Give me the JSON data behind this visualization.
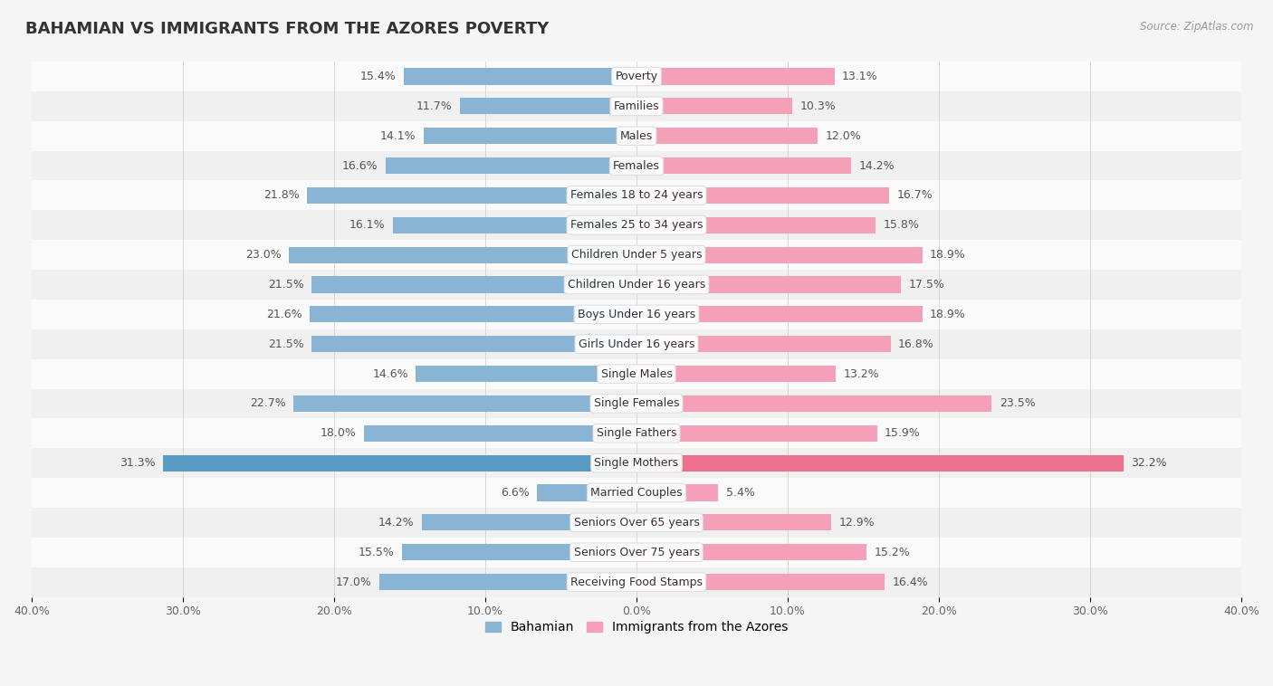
{
  "title": "BAHAMIAN VS IMMIGRANTS FROM THE AZORES POVERTY",
  "source": "Source: ZipAtlas.com",
  "categories": [
    "Poverty",
    "Families",
    "Males",
    "Females",
    "Females 18 to 24 years",
    "Females 25 to 34 years",
    "Children Under 5 years",
    "Children Under 16 years",
    "Boys Under 16 years",
    "Girls Under 16 years",
    "Single Males",
    "Single Females",
    "Single Fathers",
    "Single Mothers",
    "Married Couples",
    "Seniors Over 65 years",
    "Seniors Over 75 years",
    "Receiving Food Stamps"
  ],
  "bahamian": [
    15.4,
    11.7,
    14.1,
    16.6,
    21.8,
    16.1,
    23.0,
    21.5,
    21.6,
    21.5,
    14.6,
    22.7,
    18.0,
    31.3,
    6.6,
    14.2,
    15.5,
    17.0
  ],
  "azores": [
    13.1,
    10.3,
    12.0,
    14.2,
    16.7,
    15.8,
    18.9,
    17.5,
    18.9,
    16.8,
    13.2,
    23.5,
    15.9,
    32.2,
    5.4,
    12.9,
    15.2,
    16.4
  ],
  "bahamian_color": "#8ab4d4",
  "azores_color": "#f4a0b8",
  "highlight_bahamian_color": "#5a9bc4",
  "highlight_azores_color": "#f07090",
  "row_color_even": "#f0f0f0",
  "row_color_odd": "#fafafa",
  "background_color": "#f5f5f5",
  "xlim": 40.0,
  "bar_height": 0.55,
  "legend_bahamian": "Bahamian",
  "legend_azores": "Immigrants from the Azores",
  "label_fontsize": 9,
  "category_fontsize": 9,
  "title_fontsize": 13
}
